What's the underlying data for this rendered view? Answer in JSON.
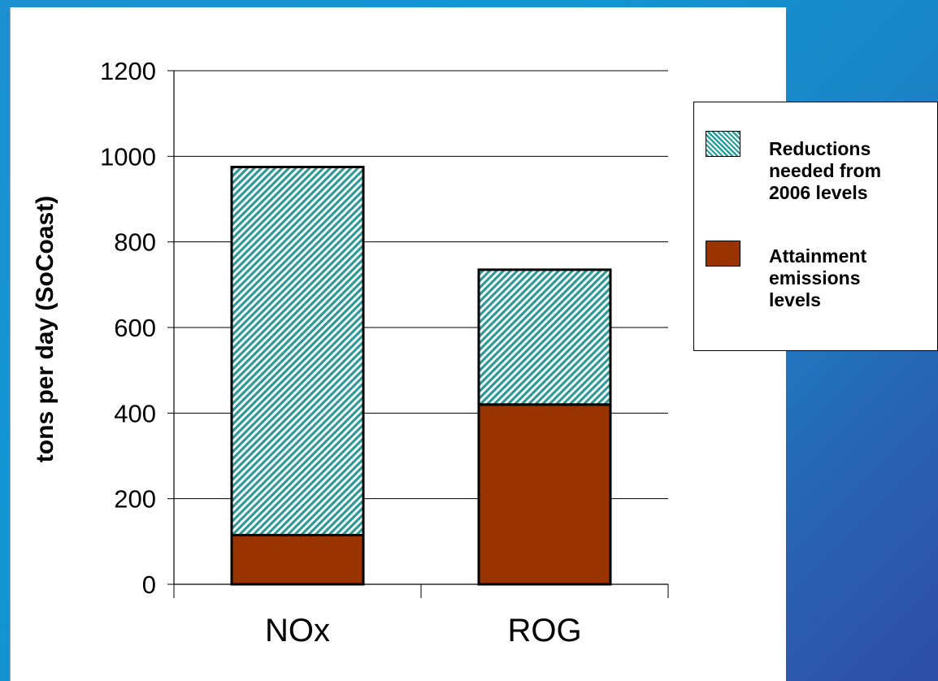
{
  "chart_data": {
    "type": "bar",
    "stacked": true,
    "categories": [
      "NOx",
      "ROG"
    ],
    "series": [
      {
        "name": "Attainment emissions levels",
        "values": [
          115,
          420
        ],
        "color": "#993300",
        "pattern": "solid"
      },
      {
        "name": "Reductions needed from 2006 levels",
        "values": [
          860,
          315
        ],
        "color": "#339999",
        "pattern": "diagonal-hatch"
      }
    ],
    "ylabel": "tons per day (SoCoast)",
    "xlabel": "",
    "ylim": [
      0,
      1200
    ],
    "yticks": [
      "0",
      "200",
      "400",
      "600",
      "800",
      "1000",
      "1200"
    ],
    "grid": true,
    "legend_position": "right",
    "legend": {
      "reductions_label": [
        "Reductions",
        "needed from",
        "2006 levels"
      ],
      "attainment_label": [
        "Attainment",
        "emissions",
        "levels"
      ]
    }
  }
}
